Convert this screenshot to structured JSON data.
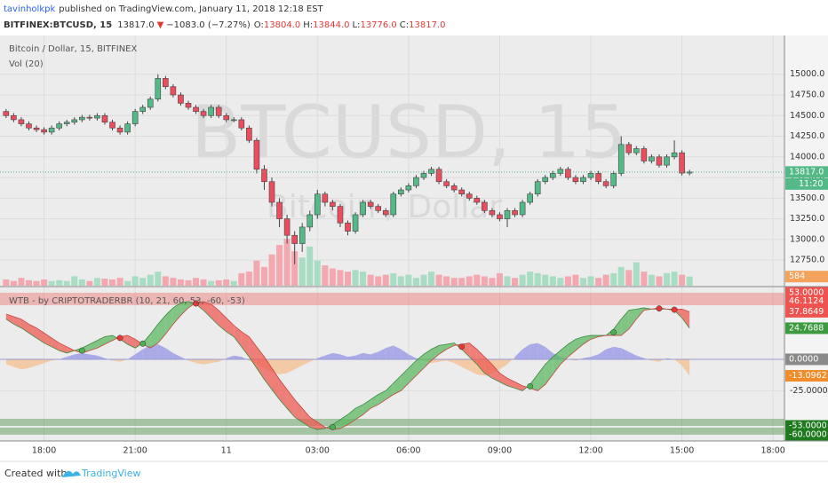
{
  "header": {
    "author": "tavinholkpk",
    "published": "published on TradingView.com, January 11, 2018 12:18 EST",
    "symbol": "BITFINEX:BTCUSD, 15",
    "last": "13817.0",
    "arrow": "▼",
    "change": "−1083.0 (−7.27%)",
    "ohlc": [
      {
        "label": "O:",
        "value": "13804.0"
      },
      {
        "label": "H:",
        "value": "13844.0"
      },
      {
        "label": "L:",
        "value": "13776.0"
      },
      {
        "label": "C:",
        "value": "13817.0"
      }
    ]
  },
  "chart_data": [
    {
      "type": "candlestick",
      "title": "Bitcoin / Dollar, 15, BITFINEX",
      "watermark": "BTCUSD, 15",
      "watermark_subtitle": "Bitcoin / Dollar",
      "open": [
        14550,
        14500,
        14450,
        14400,
        14350,
        14330,
        14300,
        14350,
        14400,
        14420,
        14450,
        14480,
        14470,
        14500,
        14420,
        14350,
        14300,
        14400,
        14550,
        14600,
        14700,
        14950,
        14850,
        14750,
        14650,
        14600,
        14550,
        14500,
        14600,
        14500,
        14450,
        14450,
        14350,
        14200,
        13850,
        13700,
        13450,
        13250,
        13050,
        12950,
        13150,
        13300,
        13550,
        13450,
        13400,
        13200,
        13100,
        13300,
        13450,
        13400,
        13350,
        13300,
        13550,
        13600,
        13650,
        13750,
        13800,
        13850,
        13700,
        13650,
        13600,
        13550,
        13500,
        13450,
        13350,
        13300,
        13250,
        13350,
        13300,
        13450,
        13550,
        13700,
        13750,
        13800,
        13850,
        13750,
        13700,
        13750,
        13800,
        13700,
        13650,
        13800,
        14150,
        14050,
        14100,
        13950,
        14000,
        13900,
        14000,
        14050,
        13804
      ],
      "high": [
        14580,
        14530,
        14480,
        14430,
        14380,
        14360,
        14380,
        14430,
        14450,
        14480,
        14510,
        14510,
        14530,
        14530,
        14450,
        14380,
        14430,
        14580,
        14630,
        14730,
        15000,
        14980,
        14880,
        14780,
        14680,
        14630,
        14580,
        14630,
        14630,
        14530,
        14480,
        14480,
        14380,
        14230,
        13900,
        13750,
        13500,
        13300,
        13100,
        13200,
        13350,
        13600,
        13580,
        13480,
        13430,
        13230,
        13330,
        13480,
        13480,
        13430,
        13380,
        13580,
        13630,
        13680,
        13780,
        13830,
        13880,
        13880,
        13730,
        13680,
        13630,
        13580,
        13530,
        13480,
        13380,
        13330,
        13380,
        13380,
        13480,
        13580,
        13730,
        13780,
        13830,
        13880,
        13880,
        13780,
        13780,
        13830,
        13830,
        13730,
        13830,
        14250,
        14180,
        14130,
        14130,
        14030,
        14030,
        14030,
        14200,
        14080,
        13844
      ],
      "low": [
        14470,
        14420,
        14370,
        14320,
        14300,
        14270,
        14270,
        14320,
        14370,
        14390,
        14420,
        14440,
        14440,
        14390,
        14320,
        14270,
        14270,
        14370,
        14520,
        14570,
        14670,
        14820,
        14720,
        14620,
        14570,
        14520,
        14470,
        14470,
        14470,
        14420,
        14420,
        14320,
        14170,
        13800,
        13600,
        13400,
        13150,
        12950,
        12700,
        12850,
        13100,
        13250,
        13400,
        13350,
        13150,
        13050,
        13070,
        13270,
        13370,
        13320,
        13270,
        13270,
        13520,
        13570,
        13620,
        13720,
        13770,
        13670,
        13620,
        13570,
        13520,
        13470,
        13420,
        13320,
        13270,
        13220,
        13150,
        13270,
        13270,
        13420,
        13520,
        13670,
        13720,
        13770,
        13720,
        13670,
        13670,
        13720,
        13670,
        13620,
        13620,
        13770,
        14020,
        14020,
        13920,
        13920,
        13870,
        13870,
        13970,
        13774,
        13776
      ],
      "close": [
        14500,
        14450,
        14400,
        14350,
        14330,
        14300,
        14350,
        14400,
        14420,
        14450,
        14480,
        14470,
        14500,
        14420,
        14350,
        14300,
        14400,
        14550,
        14600,
        14700,
        14950,
        14850,
        14750,
        14650,
        14600,
        14550,
        14500,
        14600,
        14500,
        14450,
        14450,
        14350,
        14200,
        13850,
        13700,
        13450,
        13250,
        13050,
        12950,
        13150,
        13300,
        13550,
        13450,
        13400,
        13200,
        13100,
        13300,
        13450,
        13400,
        13350,
        13300,
        13550,
        13600,
        13650,
        13750,
        13800,
        13850,
        13700,
        13650,
        13600,
        13550,
        13500,
        13450,
        13350,
        13300,
        13250,
        13350,
        13300,
        13450,
        13550,
        13700,
        13750,
        13800,
        13850,
        13750,
        13700,
        13750,
        13800,
        13700,
        13650,
        13800,
        14150,
        14050,
        14100,
        13950,
        14000,
        13900,
        14000,
        14050,
        13804,
        13817
      ],
      "up_color": "#53b987",
      "down_color": "#eb4d5c",
      "xlim": [
        -0.8,
        102.5
      ],
      "xticks": [
        {
          "value": 5,
          "label": "18:00"
        },
        {
          "value": 17,
          "label": "21:00"
        },
        {
          "value": 29,
          "label": "11"
        },
        {
          "value": 41,
          "label": "03:00"
        },
        {
          "value": 53,
          "label": "06:00"
        },
        {
          "value": 65,
          "label": "09:00"
        },
        {
          "value": 77,
          "label": "12:00"
        },
        {
          "value": 89,
          "label": "15:00"
        },
        {
          "value": 101,
          "label": "18:00"
        }
      ],
      "ylim": [
        12440,
        15470
      ],
      "yticks": [
        {
          "value": 12750,
          "label": "12750.0"
        },
        {
          "value": 13000,
          "label": "13000.0"
        },
        {
          "value": 13250,
          "label": "13250.0"
        },
        {
          "value": 13500,
          "label": "13500.0"
        },
        {
          "value": 13750,
          "label": "13750.0"
        },
        {
          "value": 14000,
          "label": "14000.0"
        },
        {
          "value": 14250,
          "label": "14250.0"
        },
        {
          "value": 14500,
          "label": "14500.0"
        },
        {
          "value": 14750,
          "label": "14750.0"
        },
        {
          "value": 15000,
          "label": "15000.0"
        }
      ],
      "last_price": {
        "value": 13817,
        "label": "13817.0",
        "color": "#53b987"
      },
      "countdown": "11:20",
      "volume": {
        "name": "Vol (20)",
        "ylim": [
          0,
          16000
        ],
        "up_color": "#a8dcc3",
        "down_color": "#f3a7ae",
        "label_color": "#f5a25d",
        "values": [
          400,
          300,
          500,
          350,
          300,
          400,
          300,
          350,
          300,
          600,
          400,
          300,
          500,
          450,
          400,
          500,
          300,
          600,
          500,
          700,
          900,
          600,
          500,
          400,
          350,
          500,
          400,
          300,
          350,
          400,
          300,
          800,
          900,
          1600,
          1200,
          2000,
          2600,
          3000,
          2200,
          1800,
          2500,
          1600,
          1300,
          1100,
          1000,
          900,
          1000,
          900,
          700,
          600,
          700,
          800,
          600,
          700,
          500,
          700,
          900,
          700,
          600,
          500,
          500,
          600,
          700,
          600,
          500,
          800,
          600,
          500,
          700,
          900,
          800,
          700,
          600,
          500,
          600,
          700,
          500,
          600,
          500,
          700,
          800,
          1200,
          1000,
          1500,
          900,
          700,
          600,
          800,
          900,
          700,
          584
        ]
      }
    },
    {
      "type": "line",
      "title": "WTB - by CRIPTOTRADERBR (10, 21, 60, 53, -60, -53)",
      "ylim": [
        -65,
        57.2
      ],
      "yticks": [
        {
          "value": -25,
          "label": "-25.0000"
        }
      ],
      "band_up_color": "#5cb860",
      "band_down_color": "#ee5a52",
      "series": [
        {
          "color": "#3d8b40",
          "values": [
            32,
            28,
            25,
            21,
            17,
            13,
            10,
            7,
            5,
            7,
            9,
            12,
            15,
            18,
            19,
            16,
            12,
            9,
            13,
            20,
            28,
            35,
            41,
            45,
            46,
            44,
            39,
            33,
            27,
            22,
            18,
            10,
            2,
            -7,
            -16,
            -24,
            -32,
            -39,
            -46,
            -50,
            -54,
            -56,
            -55,
            -52,
            -48,
            -44,
            -39,
            -36,
            -32,
            -28,
            -25,
            -19,
            -13,
            -7,
            -1,
            4,
            8,
            11,
            12,
            13,
            8,
            2,
            -4,
            -11,
            -15,
            -18,
            -21,
            -23,
            -25,
            -20,
            -12,
            -4,
            2,
            7,
            12,
            16,
            18,
            19,
            19,
            19,
            24,
            32,
            39,
            40,
            41,
            40,
            40,
            40,
            39,
            33,
            24.7688
          ]
        },
        {
          "color": "#c9463f",
          "values": [
            36,
            34,
            32,
            28,
            25,
            21,
            17,
            13,
            10,
            7,
            5,
            7,
            9,
            12,
            15,
            18,
            19,
            16,
            12,
            9,
            13,
            20,
            28,
            35,
            41,
            45,
            46,
            44,
            39,
            33,
            27,
            22,
            18,
            10,
            2,
            -7,
            -16,
            -24,
            -32,
            -39,
            -46,
            -50,
            -54,
            -56,
            -55,
            -52,
            -48,
            -44,
            -39,
            -36,
            -32,
            -28,
            -25,
            -19,
            -13,
            -7,
            -1,
            4,
            8,
            11,
            12,
            13,
            8,
            2,
            -4,
            -11,
            -15,
            -18,
            -21,
            -23,
            -25,
            -20,
            -12,
            -4,
            2,
            7,
            12,
            16,
            18,
            19,
            19,
            19,
            24,
            32,
            39,
            40,
            41,
            40,
            40,
            40,
            37.8649
          ]
        }
      ],
      "histogram": {
        "pos_color": "#9f9fe8",
        "neg_color": "#f5c49a",
        "values": [
          -4,
          -6,
          -8,
          -7,
          -5,
          -3,
          -1,
          0,
          2,
          4,
          5,
          4,
          3,
          1,
          -1,
          -2,
          0,
          4,
          8,
          11,
          12,
          9,
          5,
          2,
          -1,
          -3,
          -4,
          -3,
          -2,
          1,
          3,
          2,
          -1,
          -4,
          -7,
          -10,
          -12,
          -11,
          -8,
          -5,
          -2,
          1,
          3,
          5,
          4,
          2,
          3,
          5,
          4,
          6,
          9,
          11,
          8,
          4,
          1,
          -1,
          -3,
          -2,
          -1,
          -3,
          -6,
          -9,
          -12,
          -13,
          -11,
          -8,
          -4,
          2,
          8,
          12,
          13,
          10,
          5,
          2,
          0,
          -1,
          1,
          2,
          4,
          8,
          10,
          9,
          6,
          3,
          1,
          -1,
          -2,
          1,
          0,
          -5,
          -13.0962
        ]
      },
      "cross_up_color": "#4caf50",
      "cross_down_color": "#e53935",
      "levels": [
        {
          "value": 53,
          "label": "53.0000",
          "color": "#ef5350"
        },
        {
          "value": -53,
          "label": "-53.0000",
          "color": "#1f7a1f"
        },
        {
          "value": -60,
          "label": "-60.0000",
          "color": "#1f7a1f"
        }
      ],
      "last_values": [
        {
          "value": 46.1124,
          "label": "46.1124",
          "color": "#ef5350"
        },
        {
          "value": 37.8649,
          "label": "37.8649",
          "color": "#ef5350"
        },
        {
          "value": 24.7688,
          "label": "24.7688",
          "color": "#3c9a3f"
        },
        {
          "value": 0,
          "label": "0.0000",
          "color": "#8a8a8a"
        },
        {
          "value": -13.0962,
          "label": "-13.0962",
          "color": "#f08c2a"
        }
      ]
    }
  ],
  "footer": {
    "created": "Created with",
    "brand": "TradingView"
  }
}
